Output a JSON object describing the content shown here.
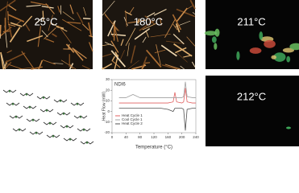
{
  "panels": [
    {
      "label": "25°C"
    },
    {
      "label": "180°C"
    },
    {
      "label": "211°C"
    },
    {
      "label": "212°C"
    }
  ],
  "chart_data": {
    "type": "line",
    "title": "NDI6",
    "x_label": "Temperature (°C)",
    "y_label": "Heat Flow (mW)",
    "x": [
      20,
      40,
      60,
      80,
      100,
      120,
      140,
      160,
      175,
      180,
      185,
      200,
      205,
      210,
      215,
      230,
      240
    ],
    "series": [
      {
        "name": "Heat Cycle 1",
        "color": "#e06060",
        "values": [
          8,
          8,
          8,
          8,
          8,
          8,
          8,
          8,
          9,
          18,
          9,
          8,
          9,
          22,
          9,
          8,
          8
        ]
      },
      {
        "name": "Cool Cycle 1",
        "color": "#a0a0a0",
        "values": [
          13,
          13,
          16,
          13,
          13,
          13,
          13,
          13,
          13,
          13,
          13,
          13,
          14,
          28,
          14,
          13,
          13
        ]
      },
      {
        "name": "Heat Cycle 2",
        "color": "#505050",
        "values": [
          3,
          3,
          3,
          3,
          3,
          3,
          3,
          2,
          0,
          3,
          3,
          3,
          2,
          -18,
          2,
          3,
          3
        ]
      }
    ],
    "xlim": [
      0,
      240
    ],
    "xticks": [
      0,
      40,
      80,
      120,
      160,
      200,
      240
    ],
    "ylim": [
      -20,
      30
    ],
    "yticks": [
      -20,
      -10,
      0,
      10,
      20,
      30
    ]
  }
}
